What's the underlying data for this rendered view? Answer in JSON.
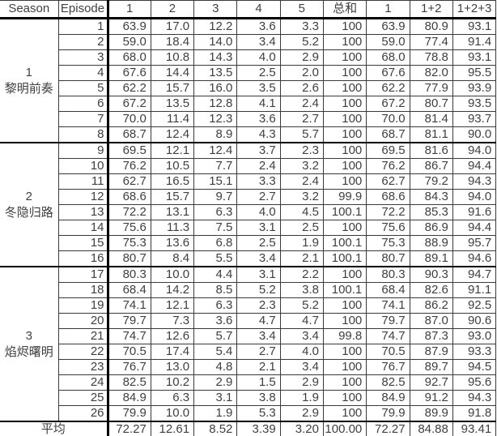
{
  "chart_data": {
    "type": "table",
    "columns": [
      "Season",
      "Episode",
      "1",
      "2",
      "3",
      "4",
      "5",
      "总和",
      "1",
      "1+2",
      "1+2+3"
    ],
    "season_groups": [
      {
        "season_number": "1",
        "season_name": "黎明前奏",
        "rows": [
          {
            "episode": "1",
            "values": [
              "63.9",
              "17.0",
              "12.2",
              "3.6",
              "3.3",
              "100",
              "63.9",
              "80.9",
              "93.1"
            ]
          },
          {
            "episode": "2",
            "values": [
              "59.0",
              "18.4",
              "14.0",
              "3.4",
              "5.2",
              "100",
              "59.0",
              "77.4",
              "91.4"
            ]
          },
          {
            "episode": "3",
            "values": [
              "68.0",
              "10.8",
              "14.3",
              "4.0",
              "2.9",
              "100",
              "68.0",
              "78.8",
              "93.1"
            ]
          },
          {
            "episode": "4",
            "values": [
              "67.6",
              "14.4",
              "13.5",
              "2.5",
              "2.0",
              "100",
              "67.6",
              "82.0",
              "95.5"
            ]
          },
          {
            "episode": "5",
            "values": [
              "62.2",
              "15.7",
              "16.0",
              "3.5",
              "2.6",
              "100",
              "62.2",
              "77.9",
              "93.9"
            ]
          },
          {
            "episode": "6",
            "values": [
              "67.2",
              "13.5",
              "12.8",
              "4.1",
              "2.4",
              "100",
              "67.2",
              "80.7",
              "93.5"
            ]
          },
          {
            "episode": "7",
            "values": [
              "70.0",
              "11.4",
              "12.3",
              "3.6",
              "2.7",
              "100",
              "70.0",
              "81.4",
              "93.7"
            ]
          },
          {
            "episode": "8",
            "values": [
              "68.7",
              "12.4",
              "8.9",
              "4.3",
              "5.7",
              "100",
              "68.7",
              "81.1",
              "90.0"
            ]
          }
        ]
      },
      {
        "season_number": "2",
        "season_name": "冬隐归路",
        "rows": [
          {
            "episode": "9",
            "values": [
              "69.5",
              "12.1",
              "12.4",
              "3.7",
              "2.3",
              "100",
              "69.5",
              "81.6",
              "94.0"
            ]
          },
          {
            "episode": "10",
            "values": [
              "76.2",
              "10.5",
              "7.7",
              "2.4",
              "3.2",
              "100",
              "76.2",
              "86.7",
              "94.4"
            ]
          },
          {
            "episode": "11",
            "values": [
              "62.7",
              "16.5",
              "15.1",
              "3.3",
              "2.4",
              "100",
              "62.7",
              "79.2",
              "94.3"
            ]
          },
          {
            "episode": "12",
            "values": [
              "68.6",
              "15.7",
              "9.7",
              "2.7",
              "3.2",
              "99.9",
              "68.6",
              "84.3",
              "94.0"
            ]
          },
          {
            "episode": "13",
            "values": [
              "72.2",
              "13.1",
              "6.3",
              "4.0",
              "4.5",
              "100.1",
              "72.2",
              "85.3",
              "91.6"
            ]
          },
          {
            "episode": "14",
            "values": [
              "75.6",
              "11.3",
              "7.5",
              "3.1",
              "2.5",
              "100",
              "75.6",
              "86.9",
              "94.4"
            ]
          },
          {
            "episode": "15",
            "values": [
              "75.3",
              "13.6",
              "6.8",
              "2.5",
              "1.9",
              "100.1",
              "75.3",
              "88.9",
              "95.7"
            ]
          },
          {
            "episode": "16",
            "values": [
              "80.7",
              "8.4",
              "5.5",
              "3.4",
              "2.1",
              "100.1",
              "80.7",
              "89.1",
              "94.6"
            ]
          }
        ]
      },
      {
        "season_number": "3",
        "season_name": "焰烬曙明",
        "rows": [
          {
            "episode": "17",
            "values": [
              "80.3",
              "10.0",
              "4.4",
              "3.1",
              "2.2",
              "100",
              "80.3",
              "90.3",
              "94.7"
            ]
          },
          {
            "episode": "18",
            "values": [
              "68.4",
              "14.2",
              "8.5",
              "5.2",
              "3.8",
              "100.1",
              "68.4",
              "82.6",
              "91.1"
            ]
          },
          {
            "episode": "19",
            "values": [
              "74.1",
              "12.1",
              "6.3",
              "2.3",
              "5.2",
              "100",
              "74.1",
              "86.2",
              "92.5"
            ]
          },
          {
            "episode": "20",
            "values": [
              "79.7",
              "7.3",
              "3.6",
              "4.7",
              "4.7",
              "100",
              "79.7",
              "87.0",
              "90.6"
            ]
          },
          {
            "episode": "21",
            "values": [
              "74.7",
              "12.6",
              "5.7",
              "3.4",
              "3.4",
              "99.8",
              "74.7",
              "87.3",
              "93.0"
            ]
          },
          {
            "episode": "22",
            "values": [
              "70.5",
              "17.4",
              "5.4",
              "2.7",
              "4.0",
              "100",
              "70.5",
              "87.9",
              "93.3"
            ]
          },
          {
            "episode": "23",
            "values": [
              "76.7",
              "13.0",
              "4.8",
              "2.1",
              "3.4",
              "100",
              "76.7",
              "89.7",
              "94.5"
            ]
          },
          {
            "episode": "24",
            "values": [
              "82.5",
              "10.2",
              "2.9",
              "1.5",
              "2.9",
              "100",
              "82.5",
              "92.7",
              "95.6"
            ]
          },
          {
            "episode": "25",
            "values": [
              "84.9",
              "6.3",
              "3.1",
              "3.8",
              "1.9",
              "100",
              "84.9",
              "91.2",
              "94.3"
            ]
          },
          {
            "episode": "26",
            "values": [
              "79.9",
              "10.0",
              "1.9",
              "5.3",
              "2.9",
              "100",
              "79.9",
              "89.9",
              "91.8"
            ]
          }
        ]
      }
    ],
    "summary_row": {
      "label": "平均",
      "values": [
        "72.27",
        "12.61",
        "8.52",
        "3.39",
        "3.20",
        "100.00",
        "72.27",
        "84.88",
        "93.41"
      ]
    }
  },
  "colors": {
    "background": "#ffffff",
    "text": "#3f3f3f",
    "grid_thin": "#3a3a3a",
    "grid_thick": "#000000"
  }
}
